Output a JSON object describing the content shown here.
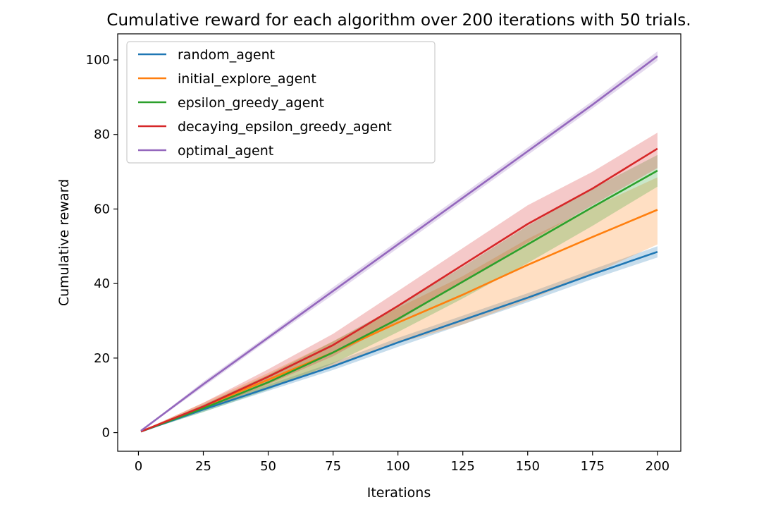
{
  "chart_data": {
    "type": "line",
    "title": "Cumulative reward for each algorithm over 200 iterations with 50 trials.",
    "xlabel": "Iterations",
    "ylabel": "Cumulative reward",
    "xlim": [
      -8,
      209
    ],
    "ylim": [
      -5,
      107
    ],
    "xticks": [
      0,
      25,
      50,
      75,
      100,
      125,
      150,
      175,
      200
    ],
    "yticks": [
      0,
      20,
      40,
      60,
      80,
      100
    ],
    "grid": false,
    "legend_position": "top-left",
    "series": [
      {
        "name": "random_agent",
        "color": "#1f77b4",
        "x": [
          1,
          25,
          50,
          75,
          100,
          125,
          150,
          175,
          200
        ],
        "y": [
          0.3,
          6.2,
          12.0,
          17.8,
          24.2,
          30.2,
          36.2,
          42.5,
          48.5
        ],
        "lower": [
          0.2,
          5.6,
          11.2,
          16.8,
          23.0,
          29.0,
          35.0,
          41.2,
          47.0
        ],
        "upper": [
          0.4,
          6.8,
          12.8,
          18.8,
          25.4,
          31.4,
          37.4,
          43.8,
          50.0
        ]
      },
      {
        "name": "initial_explore_agent",
        "color": "#ff7f0e",
        "x": [
          1,
          25,
          50,
          75,
          100,
          125,
          150,
          175,
          200
        ],
        "y": [
          0.3,
          7.0,
          14.2,
          21.5,
          29.5,
          37.0,
          45.0,
          52.5,
          59.8
        ],
        "lower": [
          0.2,
          6.0,
          12.2,
          18.0,
          24.0,
          29.0,
          35.5,
          42.5,
          50.5
        ],
        "upper": [
          0.4,
          8.0,
          16.0,
          24.5,
          33.5,
          42.0,
          52.0,
          60.5,
          68.5
        ]
      },
      {
        "name": "epsilon_greedy_agent",
        "color": "#2ca02c",
        "x": [
          1,
          25,
          50,
          75,
          100,
          125,
          150,
          175,
          200
        ],
        "y": [
          0.3,
          6.5,
          13.5,
          21.5,
          30.5,
          40.5,
          50.5,
          60.5,
          70.3
        ],
        "lower": [
          0.2,
          5.5,
          11.5,
          18.5,
          27.0,
          36.0,
          45.5,
          55.5,
          66.0
        ],
        "upper": [
          0.4,
          7.5,
          15.5,
          24.5,
          34.0,
          44.5,
          55.5,
          65.5,
          74.5
        ]
      },
      {
        "name": "decaying_epsilon_greedy_agent",
        "color": "#d62728",
        "x": [
          1,
          25,
          50,
          75,
          100,
          125,
          150,
          175,
          200
        ],
        "y": [
          0.3,
          7.0,
          15.0,
          23.5,
          34.0,
          45.0,
          56.0,
          65.5,
          76.2
        ],
        "lower": [
          0.2,
          6.0,
          13.0,
          20.5,
          30.0,
          40.5,
          51.0,
          61.0,
          71.0
        ],
        "upper": [
          0.4,
          8.0,
          17.0,
          26.5,
          38.0,
          49.5,
          61.0,
          70.0,
          80.5
        ]
      },
      {
        "name": "optimal_agent",
        "color": "#9467bd",
        "x": [
          1,
          25,
          50,
          75,
          100,
          125,
          150,
          175,
          200
        ],
        "y": [
          0.5,
          13.0,
          25.5,
          38.0,
          50.5,
          63.0,
          75.5,
          88.0,
          101.0
        ],
        "lower": [
          0.4,
          12.3,
          24.8,
          37.0,
          49.5,
          62.0,
          74.5,
          87.0,
          99.8
        ],
        "upper": [
          0.6,
          13.7,
          26.2,
          39.0,
          51.5,
          64.0,
          76.5,
          89.0,
          102.3
        ]
      }
    ]
  }
}
